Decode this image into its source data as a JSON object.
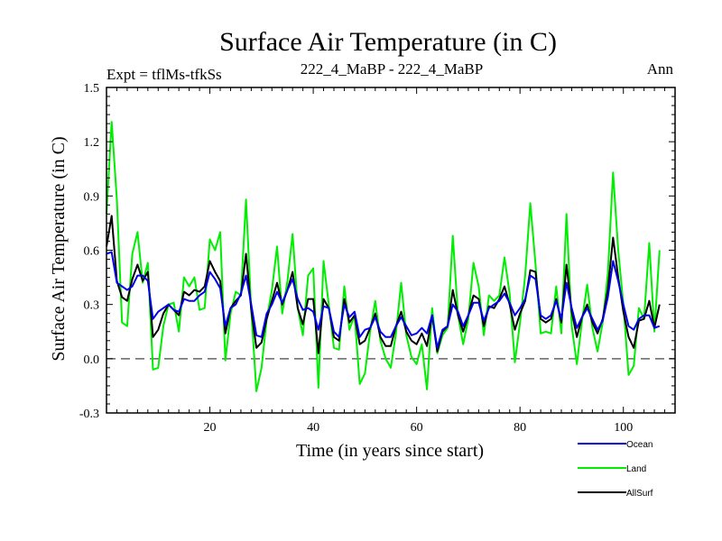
{
  "figure": {
    "title": "Surface Air Temperature (in C)",
    "expt_label": "Expt = tflMs-tfkSs",
    "subtitle": "222_4_MaBP - 222_4_MaBP",
    "season": "Ann"
  },
  "chart_data": {
    "type": "line",
    "title": "Surface Air Temperature (in C)",
    "xlabel": "Time (in years since start)",
    "ylabel": "Surface Air Temperature (in C)",
    "xlim": [
      0,
      110
    ],
    "ylim": [
      -0.3,
      1.5
    ],
    "x_ticks": [
      20,
      40,
      60,
      80,
      100
    ],
    "y_ticks": [
      -0.3,
      0.0,
      0.3,
      0.6,
      0.9,
      1.2,
      1.5
    ],
    "y_tick_labels": [
      "-0.3",
      "0.0",
      "0.3",
      "0.6",
      "0.9",
      "1.2",
      "1.5"
    ],
    "reference_line": 0.0,
    "x_start": 0,
    "legend_position": "bottom-right",
    "series": [
      {
        "name": "Land",
        "color": "#00ee00",
        "values": [
          0.8,
          1.31,
          0.88,
          0.2,
          0.18,
          0.58,
          0.7,
          0.42,
          0.53,
          -0.06,
          -0.05,
          0.18,
          0.3,
          0.31,
          0.15,
          0.45,
          0.4,
          0.45,
          0.27,
          0.28,
          0.66,
          0.6,
          0.7,
          -0.01,
          0.25,
          0.37,
          0.35,
          0.88,
          0.27,
          -0.18,
          -0.05,
          0.22,
          0.38,
          0.62,
          0.25,
          0.43,
          0.69,
          0.28,
          0.13,
          0.46,
          0.5,
          -0.16,
          0.54,
          0.3,
          0.06,
          0.05,
          0.4,
          0.16,
          0.24,
          -0.14,
          -0.08,
          0.15,
          0.32,
          0.1,
          0.0,
          -0.05,
          0.14,
          0.42,
          0.13,
          0.01,
          -0.03,
          0.08,
          -0.17,
          0.28,
          0.03,
          0.13,
          0.17,
          0.68,
          0.24,
          0.08,
          0.22,
          0.53,
          0.4,
          0.13,
          0.35,
          0.32,
          0.35,
          0.56,
          0.36,
          -0.02,
          0.2,
          0.46,
          0.86,
          0.52,
          0.14,
          0.15,
          0.14,
          0.4,
          0.14,
          0.8,
          0.18,
          -0.03,
          0.21,
          0.41,
          0.17,
          0.04,
          0.2,
          0.47,
          1.03,
          0.6,
          0.3,
          -0.09,
          -0.04,
          0.28,
          0.22,
          0.64,
          0.15,
          0.6
        ]
      },
      {
        "name": "AllSurf",
        "color": "#000000",
        "values": [
          0.62,
          0.79,
          0.43,
          0.34,
          0.32,
          0.44,
          0.52,
          0.43,
          0.48,
          0.12,
          0.16,
          0.25,
          0.3,
          0.27,
          0.24,
          0.37,
          0.35,
          0.38,
          0.37,
          0.4,
          0.54,
          0.48,
          0.43,
          0.14,
          0.28,
          0.32,
          0.35,
          0.58,
          0.27,
          0.06,
          0.09,
          0.22,
          0.32,
          0.42,
          0.3,
          0.38,
          0.48,
          0.28,
          0.19,
          0.33,
          0.33,
          0.03,
          0.33,
          0.28,
          0.12,
          0.1,
          0.33,
          0.2,
          0.24,
          0.08,
          0.1,
          0.17,
          0.25,
          0.12,
          0.07,
          0.07,
          0.18,
          0.26,
          0.15,
          0.1,
          0.08,
          0.14,
          0.07,
          0.24,
          0.04,
          0.15,
          0.18,
          0.38,
          0.24,
          0.15,
          0.24,
          0.35,
          0.33,
          0.18,
          0.29,
          0.28,
          0.33,
          0.4,
          0.3,
          0.16,
          0.25,
          0.32,
          0.49,
          0.48,
          0.22,
          0.2,
          0.22,
          0.33,
          0.2,
          0.52,
          0.26,
          0.12,
          0.23,
          0.3,
          0.2,
          0.14,
          0.22,
          0.38,
          0.67,
          0.45,
          0.26,
          0.12,
          0.06,
          0.21,
          0.22,
          0.32,
          0.17,
          0.3
        ]
      },
      {
        "name": "Ocean",
        "color": "#0000ee",
        "values": [
          0.58,
          0.59,
          0.42,
          0.4,
          0.38,
          0.4,
          0.46,
          0.46,
          0.43,
          0.22,
          0.26,
          0.28,
          0.3,
          0.27,
          0.26,
          0.33,
          0.32,
          0.32,
          0.35,
          0.37,
          0.48,
          0.44,
          0.39,
          0.18,
          0.28,
          0.3,
          0.36,
          0.46,
          0.3,
          0.13,
          0.12,
          0.25,
          0.3,
          0.37,
          0.31,
          0.38,
          0.44,
          0.33,
          0.27,
          0.28,
          0.26,
          0.16,
          0.29,
          0.28,
          0.15,
          0.12,
          0.3,
          0.23,
          0.26,
          0.12,
          0.16,
          0.17,
          0.23,
          0.15,
          0.12,
          0.12,
          0.18,
          0.23,
          0.18,
          0.13,
          0.14,
          0.17,
          0.14,
          0.24,
          0.06,
          0.16,
          0.18,
          0.3,
          0.26,
          0.18,
          0.24,
          0.31,
          0.31,
          0.21,
          0.28,
          0.3,
          0.32,
          0.36,
          0.31,
          0.24,
          0.28,
          0.33,
          0.46,
          0.44,
          0.24,
          0.22,
          0.24,
          0.32,
          0.22,
          0.42,
          0.28,
          0.17,
          0.23,
          0.28,
          0.22,
          0.16,
          0.21,
          0.34,
          0.54,
          0.43,
          0.3,
          0.18,
          0.16,
          0.22,
          0.24,
          0.24,
          0.17,
          0.18
        ]
      }
    ]
  }
}
